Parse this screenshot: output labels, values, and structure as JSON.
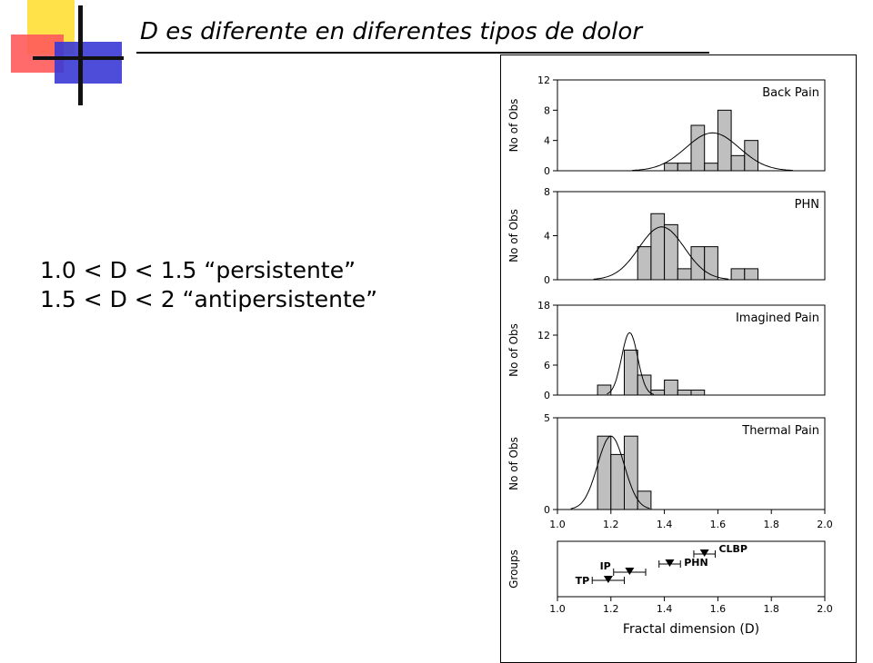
{
  "slide": {
    "title": "D es diferente en diferentes tipos de dolor",
    "ranges": [
      "1.0 < D < 1.5 “persistente”",
      "1.5 < D < 2   “antipersistente”"
    ]
  },
  "colors": {
    "bar_fill": "#bfbfbf",
    "logo_yellow": "#ffe24a",
    "logo_red": "#ff5a5a",
    "logo_blue": "#3a3ad6"
  },
  "chart_data": [
    {
      "type": "bar",
      "label": "Back Pain",
      "ylabel": "No of Obs",
      "ylim": [
        0,
        12
      ],
      "yticks": [
        "0",
        "4",
        "8",
        "12"
      ],
      "xlim": [
        1.0,
        2.0
      ],
      "bin_width": 0.05,
      "bins_start": [
        1.35,
        1.4,
        1.45,
        1.5,
        1.55,
        1.6,
        1.65,
        1.7
      ],
      "values": [
        0,
        1,
        1,
        6,
        1,
        8,
        2,
        4
      ],
      "fit": {
        "mean": 1.58,
        "sd": 0.1,
        "peak": 5
      }
    },
    {
      "type": "bar",
      "label": "PHN",
      "ylabel": "No of Obs",
      "ylim": [
        0,
        8
      ],
      "yticks": [
        "0",
        "4",
        "8"
      ],
      "xlim": [
        1.0,
        2.0
      ],
      "bin_width": 0.05,
      "bins_start": [
        1.3,
        1.35,
        1.4,
        1.45,
        1.5,
        1.55,
        1.6,
        1.65,
        1.7
      ],
      "values": [
        3,
        6,
        5,
        1,
        3,
        3,
        0,
        1,
        1
      ],
      "fit": {
        "mean": 1.39,
        "sd": 0.085,
        "peak": 4.8
      }
    },
    {
      "type": "bar",
      "label": "Imagined Pain",
      "ylabel": "No of Obs",
      "ylim": [
        0,
        18
      ],
      "yticks": [
        "0",
        "6",
        "12",
        "18"
      ],
      "xlim": [
        1.0,
        2.0
      ],
      "bin_width": 0.05,
      "bins_start": [
        1.15,
        1.2,
        1.25,
        1.3,
        1.35,
        1.4,
        1.45,
        1.5
      ],
      "values": [
        2,
        0,
        9,
        4,
        1,
        3,
        1,
        1
      ],
      "fit": {
        "mean": 1.27,
        "sd": 0.03,
        "peak": 12.5
      }
    },
    {
      "type": "bar",
      "label": "Thermal Pain",
      "ylabel": "No of Obs",
      "ylim": [
        0,
        5
      ],
      "yticks": [
        "0",
        "5"
      ],
      "xticks": [
        "1.0",
        "1.2",
        "1.4",
        "1.6",
        "1.8",
        "2.0"
      ],
      "xlim": [
        1.0,
        2.0
      ],
      "bin_width": 0.05,
      "bins_start": [
        1.15,
        1.2,
        1.25,
        1.3,
        1.35
      ],
      "values": [
        4,
        3,
        4,
        1,
        0
      ],
      "fit": {
        "mean": 1.2,
        "sd": 0.05,
        "peak": 4
      }
    },
    {
      "type": "scatter",
      "ylabel": "Groups",
      "xlabel": "Fractal dimension (D)",
      "xlim": [
        1.0,
        2.0
      ],
      "xticks": [
        "1.0",
        "1.2",
        "1.4",
        "1.6",
        "1.8",
        "2.0"
      ],
      "groups": [
        {
          "name": "TP",
          "mean": 1.19,
          "low": 1.13,
          "high": 1.25,
          "level": 1
        },
        {
          "name": "IP",
          "mean": 1.27,
          "low": 1.21,
          "high": 1.33,
          "level": 2
        },
        {
          "name": "PHN",
          "mean": 1.42,
          "low": 1.38,
          "high": 1.46,
          "level": 3
        },
        {
          "name": "CLBP",
          "mean": 1.55,
          "low": 1.51,
          "high": 1.59,
          "level": 4
        }
      ]
    }
  ]
}
